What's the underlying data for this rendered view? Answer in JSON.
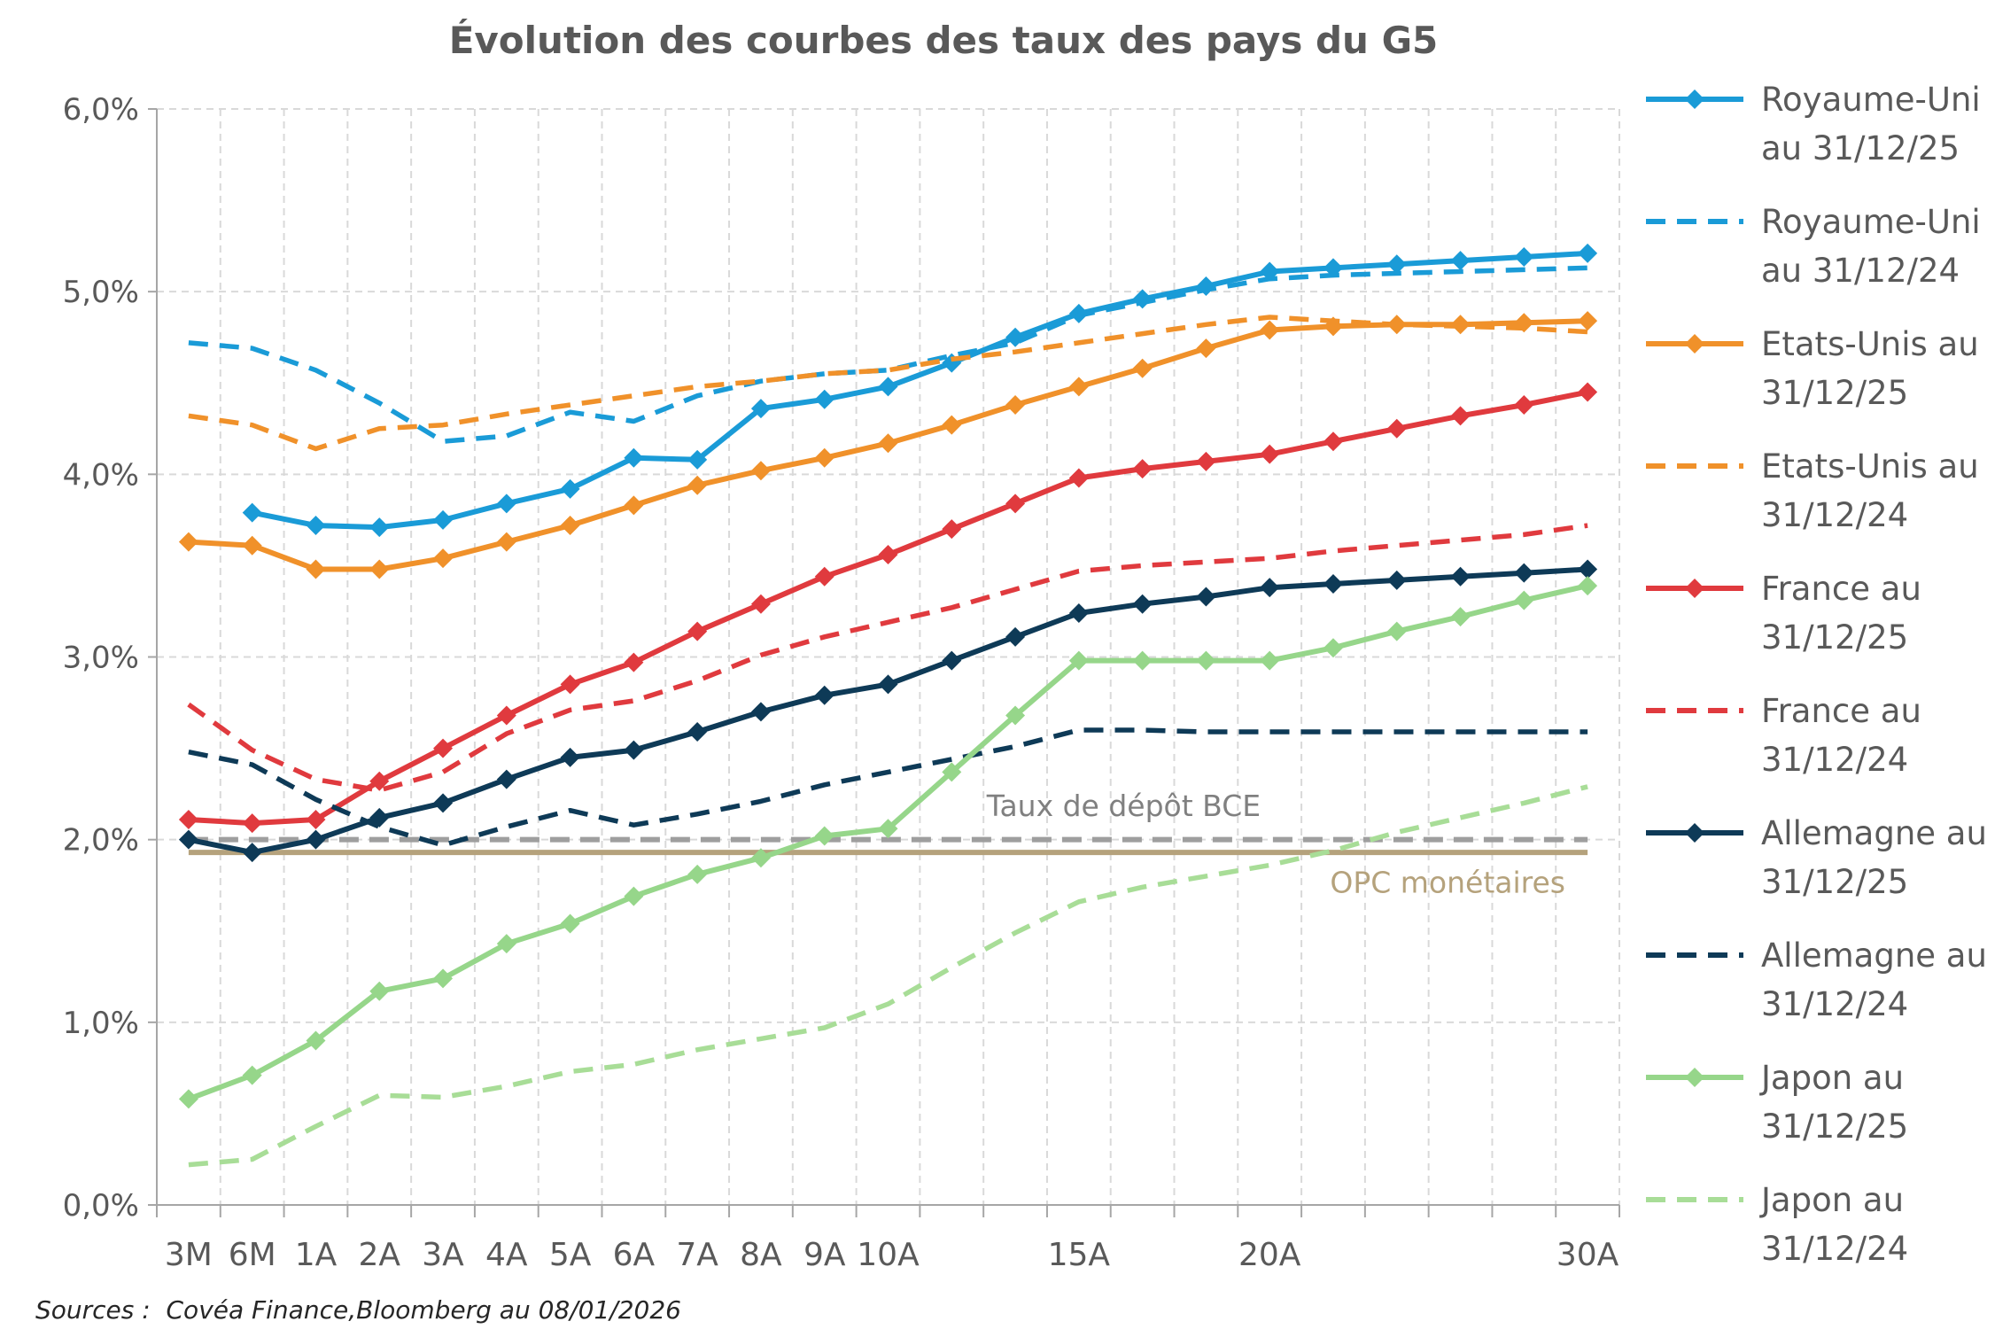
{
  "chart_data": {
    "type": "line",
    "title": "Évolution des courbes des taux des pays du G5",
    "xlabel": "",
    "ylabel": "",
    "ylim": [
      0,
      6
    ],
    "y_ticks": [
      "0,0%",
      "1,0%",
      "2,0%",
      "3,0%",
      "4,0%",
      "5,0%",
      "6,0%"
    ],
    "x_tick_labels": [
      {
        "label": "3M",
        "x": 0
      },
      {
        "label": "6M",
        "x": 1
      },
      {
        "label": "1A",
        "x": 2
      },
      {
        "label": "2A",
        "x": 3
      },
      {
        "label": "3A",
        "x": 4
      },
      {
        "label": "4A",
        "x": 5
      },
      {
        "label": "5A",
        "x": 6
      },
      {
        "label": "6A",
        "x": 7
      },
      {
        "label": "7A",
        "x": 8
      },
      {
        "label": "8A",
        "x": 9
      },
      {
        "label": "9A",
        "x": 10
      },
      {
        "label": "10A",
        "x": 11
      },
      {
        "label": "15A",
        "x": 14
      },
      {
        "label": "20A",
        "x": 17
      },
      {
        "label": "30A",
        "x": 22
      }
    ],
    "x_range": [
      -0.5,
      22.5
    ],
    "grid": true,
    "series": [
      {
        "name": "Royaume-Uni au 31/12/25",
        "color": "#1a9bd7",
        "style": "solid",
        "markers": true,
        "points": [
          [
            1,
            3.79
          ],
          [
            2,
            3.72
          ],
          [
            3,
            3.71
          ],
          [
            4,
            3.75
          ],
          [
            5,
            3.84
          ],
          [
            6,
            3.92
          ],
          [
            7,
            4.09
          ],
          [
            8,
            4.08
          ],
          [
            9,
            4.36
          ],
          [
            10,
            4.41
          ],
          [
            11,
            4.48
          ],
          [
            12,
            4.61
          ],
          [
            13,
            4.75
          ],
          [
            14,
            4.88
          ],
          [
            15,
            4.96
          ],
          [
            16,
            5.03
          ],
          [
            17,
            5.11
          ],
          [
            18,
            5.13
          ],
          [
            19,
            5.15
          ],
          [
            20,
            5.17
          ],
          [
            21,
            5.19
          ],
          [
            22,
            5.21
          ]
        ]
      },
      {
        "name": "Royaume-Uni au 31/12/24",
        "color": "#1a9bd7",
        "style": "dashed",
        "markers": false,
        "points": [
          [
            0,
            4.72
          ],
          [
            1,
            4.69
          ],
          [
            2,
            4.57
          ],
          [
            3,
            4.39
          ],
          [
            4,
            4.18
          ],
          [
            5,
            4.21
          ],
          [
            6,
            4.34
          ],
          [
            7,
            4.29
          ],
          [
            8,
            4.43
          ],
          [
            9,
            4.51
          ],
          [
            10,
            4.55
          ],
          [
            11,
            4.57
          ],
          [
            12,
            4.65
          ],
          [
            13,
            4.72
          ],
          [
            14,
            4.87
          ],
          [
            15,
            4.94
          ],
          [
            16,
            5.01
          ],
          [
            17,
            5.07
          ],
          [
            18,
            5.09
          ],
          [
            19,
            5.1
          ],
          [
            20,
            5.11
          ],
          [
            21,
            5.12
          ],
          [
            22,
            5.13
          ]
        ]
      },
      {
        "name": "Etats-Unis au 31/12/25",
        "color": "#f0912a",
        "style": "solid",
        "markers": true,
        "points": [
          [
            0,
            3.63
          ],
          [
            1,
            3.61
          ],
          [
            2,
            3.48
          ],
          [
            3,
            3.48
          ],
          [
            4,
            3.54
          ],
          [
            5,
            3.63
          ],
          [
            6,
            3.72
          ],
          [
            7,
            3.83
          ],
          [
            8,
            3.94
          ],
          [
            9,
            4.02
          ],
          [
            10,
            4.09
          ],
          [
            11,
            4.17
          ],
          [
            12,
            4.27
          ],
          [
            13,
            4.38
          ],
          [
            14,
            4.48
          ],
          [
            15,
            4.58
          ],
          [
            16,
            4.69
          ],
          [
            17,
            4.79
          ],
          [
            18,
            4.81
          ],
          [
            19,
            4.82
          ],
          [
            20,
            4.82
          ],
          [
            21,
            4.83
          ],
          [
            22,
            4.84
          ]
        ]
      },
      {
        "name": "Etats-Unis au 31/12/24",
        "color": "#f0912a",
        "style": "dashed",
        "markers": false,
        "points": [
          [
            0,
            4.32
          ],
          [
            1,
            4.27
          ],
          [
            2,
            4.14
          ],
          [
            3,
            4.25
          ],
          [
            4,
            4.27
          ],
          [
            5,
            4.33
          ],
          [
            6,
            4.38
          ],
          [
            7,
            4.43
          ],
          [
            8,
            4.48
          ],
          [
            9,
            4.51
          ],
          [
            10,
            4.55
          ],
          [
            11,
            4.57
          ],
          [
            12,
            4.63
          ],
          [
            13,
            4.67
          ],
          [
            14,
            4.72
          ],
          [
            15,
            4.77
          ],
          [
            16,
            4.82
          ],
          [
            17,
            4.86
          ],
          [
            18,
            4.84
          ],
          [
            19,
            4.82
          ],
          [
            20,
            4.81
          ],
          [
            21,
            4.8
          ],
          [
            22,
            4.78
          ]
        ]
      },
      {
        "name": "France au 31/12/25",
        "color": "#e03a3e",
        "style": "solid",
        "markers": true,
        "points": [
          [
            0,
            2.11
          ],
          [
            1,
            2.09
          ],
          [
            2,
            2.11
          ],
          [
            3,
            2.32
          ],
          [
            4,
            2.5
          ],
          [
            5,
            2.68
          ],
          [
            6,
            2.85
          ],
          [
            7,
            2.97
          ],
          [
            8,
            3.14
          ],
          [
            9,
            3.29
          ],
          [
            10,
            3.44
          ],
          [
            11,
            3.56
          ],
          [
            12,
            3.7
          ],
          [
            13,
            3.84
          ],
          [
            14,
            3.98
          ],
          [
            15,
            4.03
          ],
          [
            16,
            4.07
          ],
          [
            17,
            4.11
          ],
          [
            18,
            4.18
          ],
          [
            19,
            4.25
          ],
          [
            20,
            4.32
          ],
          [
            21,
            4.38
          ],
          [
            22,
            4.45
          ]
        ]
      },
      {
        "name": "France au 31/12/24",
        "color": "#e03a3e",
        "style": "dashed",
        "markers": false,
        "points": [
          [
            0,
            2.74
          ],
          [
            1,
            2.49
          ],
          [
            2,
            2.33
          ],
          [
            3,
            2.27
          ],
          [
            4,
            2.37
          ],
          [
            5,
            2.58
          ],
          [
            6,
            2.71
          ],
          [
            7,
            2.76
          ],
          [
            8,
            2.87
          ],
          [
            9,
            3.01
          ],
          [
            10,
            3.11
          ],
          [
            11,
            3.19
          ],
          [
            12,
            3.27
          ],
          [
            13,
            3.37
          ],
          [
            14,
            3.47
          ],
          [
            15,
            3.5
          ],
          [
            16,
            3.52
          ],
          [
            17,
            3.54
          ],
          [
            18,
            3.58
          ],
          [
            19,
            3.61
          ],
          [
            20,
            3.64
          ],
          [
            21,
            3.67
          ],
          [
            22,
            3.72
          ]
        ]
      },
      {
        "name": "Allemagne au 31/12/25",
        "color": "#0e3a57",
        "style": "solid",
        "markers": true,
        "points": [
          [
            0,
            2.0
          ],
          [
            1,
            1.93
          ],
          [
            2,
            2.0
          ],
          [
            3,
            2.12
          ],
          [
            4,
            2.2
          ],
          [
            5,
            2.33
          ],
          [
            6,
            2.45
          ],
          [
            7,
            2.49
          ],
          [
            8,
            2.59
          ],
          [
            9,
            2.7
          ],
          [
            10,
            2.79
          ],
          [
            11,
            2.85
          ],
          [
            12,
            2.98
          ],
          [
            13,
            3.11
          ],
          [
            14,
            3.24
          ],
          [
            15,
            3.29
          ],
          [
            16,
            3.33
          ],
          [
            17,
            3.38
          ],
          [
            18,
            3.4
          ],
          [
            19,
            3.42
          ],
          [
            20,
            3.44
          ],
          [
            21,
            3.46
          ],
          [
            22,
            3.48
          ]
        ]
      },
      {
        "name": "Allemagne au 31/12/24",
        "color": "#0e3a57",
        "style": "dashed",
        "markers": false,
        "points": [
          [
            0,
            2.48
          ],
          [
            1,
            2.41
          ],
          [
            2,
            2.22
          ],
          [
            3,
            2.07
          ],
          [
            4,
            1.97
          ],
          [
            5,
            2.07
          ],
          [
            6,
            2.16
          ],
          [
            7,
            2.08
          ],
          [
            8,
            2.14
          ],
          [
            9,
            2.21
          ],
          [
            10,
            2.3
          ],
          [
            11,
            2.37
          ],
          [
            12,
            2.44
          ],
          [
            13,
            2.51
          ],
          [
            14,
            2.6
          ],
          [
            15,
            2.6
          ],
          [
            16,
            2.59
          ],
          [
            17,
            2.59
          ],
          [
            18,
            2.59
          ],
          [
            19,
            2.59
          ],
          [
            20,
            2.59
          ],
          [
            21,
            2.59
          ],
          [
            22,
            2.59
          ]
        ]
      },
      {
        "name": "Japon au 31/12/25",
        "color": "#96d68a",
        "style": "solid",
        "markers": true,
        "points": [
          [
            0,
            0.58
          ],
          [
            1,
            0.71
          ],
          [
            2,
            0.9
          ],
          [
            3,
            1.17
          ],
          [
            4,
            1.24
          ],
          [
            5,
            1.43
          ],
          [
            6,
            1.54
          ],
          [
            7,
            1.69
          ],
          [
            8,
            1.81
          ],
          [
            9,
            1.9
          ],
          [
            10,
            2.02
          ],
          [
            11,
            2.06
          ],
          [
            12,
            2.37
          ],
          [
            13,
            2.68
          ],
          [
            14,
            2.98
          ],
          [
            15,
            2.98
          ],
          [
            16,
            2.98
          ],
          [
            17,
            2.98
          ],
          [
            18,
            3.05
          ],
          [
            19,
            3.14
          ],
          [
            20,
            3.22
          ],
          [
            21,
            3.31
          ],
          [
            22,
            3.39
          ]
        ]
      },
      {
        "name": "Japon au 31/12/24",
        "color": "#a8dd97",
        "style": "dashed",
        "markers": false,
        "points": [
          [
            0,
            0.22
          ],
          [
            1,
            0.25
          ],
          [
            2,
            0.43
          ],
          [
            3,
            0.6
          ],
          [
            4,
            0.59
          ],
          [
            5,
            0.65
          ],
          [
            6,
            0.73
          ],
          [
            7,
            0.77
          ],
          [
            8,
            0.85
          ],
          [
            9,
            0.91
          ],
          [
            10,
            0.97
          ],
          [
            11,
            1.1
          ],
          [
            12,
            1.3
          ],
          [
            13,
            1.49
          ],
          [
            14,
            1.66
          ],
          [
            15,
            1.74
          ],
          [
            16,
            1.8
          ],
          [
            17,
            1.86
          ],
          [
            18,
            1.94
          ],
          [
            19,
            2.04
          ],
          [
            20,
            2.12
          ],
          [
            21,
            2.2
          ],
          [
            22,
            2.29
          ]
        ]
      }
    ],
    "reference_lines": [
      {
        "name": "Taux de dépôt BCE",
        "value": 2.0,
        "color": "#9e9e9e",
        "style": "dashed"
      },
      {
        "name": "OPC monétaires",
        "value": 1.93,
        "color": "#b5a27c",
        "style": "solid"
      }
    ],
    "legend": {
      "placement": "right",
      "entries": [
        [
          "Royaume-Uni",
          "au 31/12/25"
        ],
        [
          "Royaume-Uni",
          "au 31/12/24"
        ],
        [
          "Etats-Unis au",
          "31/12/25"
        ],
        [
          "Etats-Unis au",
          "31/12/24"
        ],
        [
          "France au",
          "31/12/25"
        ],
        [
          "France au",
          "31/12/24"
        ],
        [
          "Allemagne au",
          "31/12/25"
        ],
        [
          "Allemagne au",
          "31/12/24"
        ],
        [
          "Japon au",
          "31/12/25"
        ],
        [
          "Japon au",
          "31/12/24"
        ]
      ]
    },
    "source": "Sources :  Covéa Finance,Bloomberg au 08/01/2026"
  }
}
